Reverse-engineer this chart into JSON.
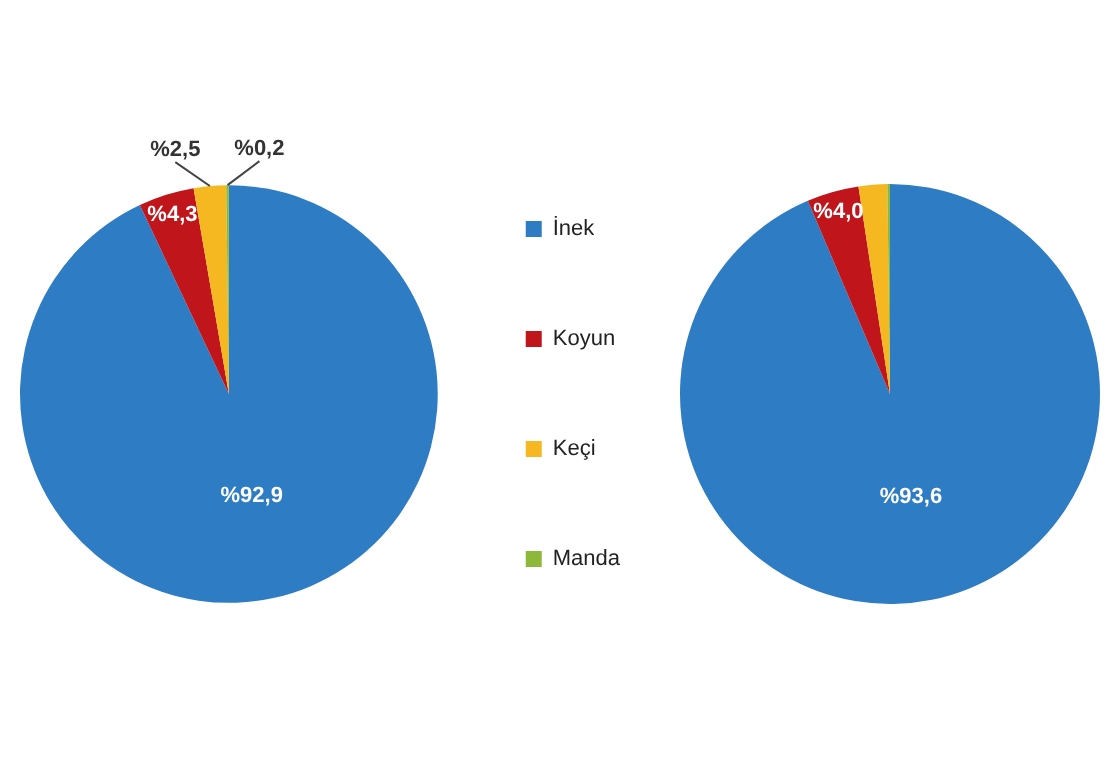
{
  "chart_data": {
    "type": "pie",
    "categories": [
      "İnek",
      "Koyun",
      "Keçi",
      "Manda"
    ],
    "legend": "right",
    "series": [
      {
        "values": [
          92.9,
          4.3,
          2.5,
          0.2
        ],
        "colors": [
          "#2e7cc4",
          "#c0151b",
          "#f5b820",
          "#8db83a"
        ],
        "value_labels": [
          "%92,9",
          "%4,3",
          "%2,5",
          "%0,2"
        ]
      },
      {
        "values": [
          93.6,
          4.0,
          2.2,
          0.2
        ],
        "colors": [
          "#2e7cc4",
          "#c0151b",
          "#f5b820",
          "#8db83a"
        ],
        "value_labels": [
          "%93,6",
          "%4,0",
          null,
          null
        ]
      }
    ]
  }
}
